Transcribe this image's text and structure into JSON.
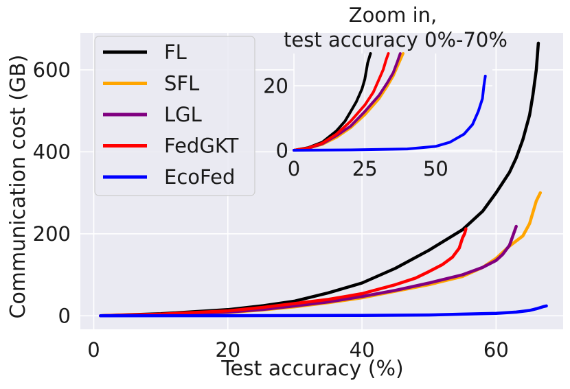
{
  "chart_data": {
    "type": "line",
    "main": {
      "xlabel": "Test accuracy (%)",
      "ylabel": "Communication cost (GB)",
      "xlim": [
        -2,
        70
      ],
      "ylim": [
        -33,
        690
      ],
      "xticks": [
        0,
        20,
        40,
        60
      ],
      "yticks": [
        0,
        200,
        400,
        600
      ],
      "grid": true,
      "legend_position": "upper-left",
      "series": [
        {
          "name": "FL",
          "color": "#000000",
          "x": [
            1,
            10,
            20,
            25,
            30,
            35,
            40,
            45,
            50,
            55,
            58,
            60,
            62,
            63,
            64,
            65,
            65.5,
            66,
            66.3
          ],
          "y": [
            0,
            5,
            15,
            24,
            36,
            56,
            80,
            116,
            160,
            210,
            255,
            300,
            350,
            385,
            430,
            490,
            540,
            600,
            665
          ]
        },
        {
          "name": "SFL",
          "color": "#ffa500",
          "x": [
            1,
            10,
            20,
            25,
            30,
            35,
            40,
            45,
            50,
            55,
            58,
            60,
            62,
            64,
            65,
            66,
            66.6
          ],
          "y": [
            0,
            3,
            8,
            14,
            22,
            32,
            44,
            60,
            76,
            96,
            118,
            140,
            170,
            195,
            225,
            280,
            300
          ]
        },
        {
          "name": "LGL",
          "color": "#800080",
          "x": [
            1,
            10,
            20,
            25,
            30,
            35,
            40,
            45,
            50,
            55,
            58,
            60,
            61,
            62,
            63
          ],
          "y": [
            0,
            3,
            9,
            15,
            24,
            34,
            47,
            62,
            80,
            100,
            118,
            135,
            150,
            172,
            218
          ]
        },
        {
          "name": "FedGKT",
          "color": "#ff0000",
          "x": [
            1,
            10,
            20,
            25,
            30,
            35,
            40,
            45,
            48,
            50,
            52,
            53.5,
            54.5,
            55,
            55.3,
            55.5
          ],
          "y": [
            0,
            4,
            12,
            20,
            30,
            40,
            54,
            76,
            92,
            108,
            125,
            143,
            165,
            190,
            200,
            212
          ]
        },
        {
          "name": "EcoFed",
          "color": "#0000ff",
          "x": [
            1,
            20,
            40,
            50,
            55,
            60,
            63,
            65,
            66,
            67,
            67.5
          ],
          "y": [
            0,
            0.3,
            1,
            2,
            4,
            6,
            9,
            13,
            17,
            22,
            24
          ]
        }
      ]
    },
    "inset": {
      "title_line1": "Zoom in,",
      "title_line2": "test accuracy 0%-70%",
      "xlim": [
        0,
        70
      ],
      "ylim": [
        0,
        30
      ],
      "xticks": [
        0,
        25,
        50
      ],
      "yticks": [
        0,
        20
      ],
      "grid": true,
      "series": [
        {
          "name": "FL",
          "color": "#000000",
          "x": [
            0,
            5,
            10,
            15,
            18,
            20,
            22,
            24,
            25,
            26,
            27
          ],
          "y": [
            0,
            0.8,
            2.5,
            6,
            9,
            12,
            15,
            19,
            22,
            27,
            30
          ]
        },
        {
          "name": "SFL",
          "color": "#ffa500",
          "x": [
            0,
            5,
            10,
            15,
            20,
            25,
            30,
            33,
            35,
            37,
            38.5
          ],
          "y": [
            0,
            0.6,
            1.8,
            4,
            7,
            11,
            16,
            20,
            23,
            27,
            30
          ]
        },
        {
          "name": "LGL",
          "color": "#800080",
          "x": [
            0,
            5,
            10,
            15,
            20,
            25,
            30,
            33,
            35,
            36.5,
            37.5
          ],
          "y": [
            0,
            0.6,
            2,
            4.5,
            7.5,
            12,
            17,
            21,
            24,
            27.5,
            30
          ]
        },
        {
          "name": "FedGKT",
          "color": "#ff0000",
          "x": [
            0,
            5,
            10,
            15,
            20,
            25,
            28,
            30,
            31.5,
            32.5,
            33.3
          ],
          "y": [
            0,
            0.7,
            2.2,
            5,
            9,
            14,
            18,
            22,
            25,
            28,
            30
          ]
        },
        {
          "name": "EcoFed",
          "color": "#0000ff",
          "x": [
            0,
            20,
            40,
            50,
            55,
            60,
            63,
            65,
            66.5,
            67,
            67.5
          ],
          "y": [
            0,
            0.1,
            0.4,
            1.2,
            2.5,
            5,
            8,
            12,
            16,
            20,
            23
          ]
        }
      ]
    }
  }
}
